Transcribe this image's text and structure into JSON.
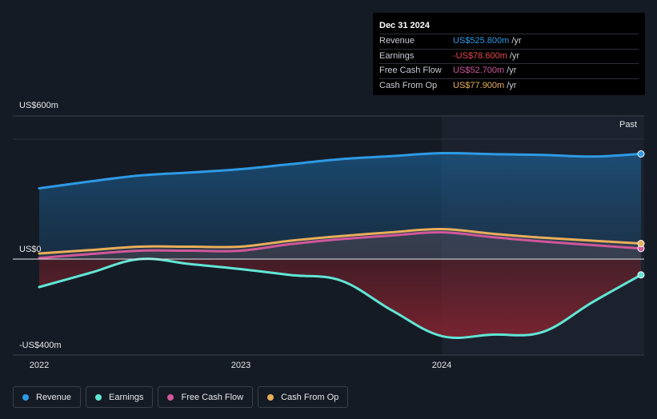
{
  "chart_data": {
    "type": "area",
    "yaxis_labels": {
      "top": "US$600m",
      "zero": "US$0",
      "bottom": "-US$400m"
    },
    "ylim": [
      -400,
      600
    ],
    "xlim": [
      2022.0,
      2024.99
    ],
    "x_ticks": [
      {
        "value": 2022,
        "label": "2022"
      },
      {
        "value": 2023,
        "label": "2023"
      },
      {
        "value": 2024,
        "label": "2024"
      }
    ],
    "highlight_from": 2024.0,
    "past_label": "Past",
    "series": [
      {
        "name": "Revenue",
        "color": "#2e9ae5",
        "x": [
          2022.0,
          2022.25,
          2022.5,
          2022.75,
          2023.0,
          2023.25,
          2023.5,
          2023.75,
          2024.0,
          2024.25,
          2024.5,
          2024.75,
          2024.99
        ],
        "values": [
          354,
          388,
          418,
          433,
          450,
          475,
          500,
          515,
          530,
          525,
          521,
          513,
          526
        ]
      },
      {
        "name": "Earnings",
        "color": "#61e6d5",
        "x": [
          2022.0,
          2022.25,
          2022.5,
          2022.75,
          2023.0,
          2023.25,
          2023.5,
          2023.75,
          2024.0,
          2024.25,
          2024.5,
          2024.75,
          2024.99
        ],
        "values": [
          -140,
          -70,
          0,
          -25,
          -50,
          -80,
          -108,
          -255,
          -385,
          -378,
          -365,
          -215,
          -79
        ]
      },
      {
        "name": "Free Cash Flow",
        "color": "#d0579a",
        "x": [
          2022.0,
          2022.25,
          2022.5,
          2022.75,
          2023.0,
          2023.25,
          2023.5,
          2023.75,
          2024.0,
          2024.25,
          2024.5,
          2024.75,
          2024.99
        ],
        "values": [
          5,
          25,
          42,
          42,
          42,
          75,
          100,
          118,
          134,
          110,
          88,
          70,
          53
        ]
      },
      {
        "name": "Cash From Op",
        "color": "#e9ae5a",
        "x": [
          2022.0,
          2022.25,
          2022.5,
          2022.75,
          2023.0,
          2023.25,
          2023.5,
          2023.75,
          2024.0,
          2024.25,
          2024.5,
          2024.75,
          2024.99
        ],
        "values": [
          28,
          45,
          62,
          62,
          62,
          92,
          115,
          134,
          150,
          127,
          107,
          92,
          78
        ]
      }
    ]
  },
  "tooltip": {
    "title": "Dec 31 2024",
    "rows": [
      {
        "name": "Revenue",
        "value": "US$525.800m",
        "unit": "/yr",
        "color": "#2e9ae5"
      },
      {
        "name": "Earnings",
        "value": "-US$78.600m",
        "unit": "/yr",
        "color": "#e8474a"
      },
      {
        "name": "Free Cash Flow",
        "value": "US$52.700m",
        "unit": "/yr",
        "color": "#d0579a"
      },
      {
        "name": "Cash From Op",
        "value": "US$77.900m",
        "unit": "/yr",
        "color": "#e9ae5a"
      }
    ]
  },
  "legend": [
    {
      "label": "Revenue",
      "color": "#2e9ae5"
    },
    {
      "label": "Earnings",
      "color": "#61e6d5"
    },
    {
      "label": "Free Cash Flow",
      "color": "#d0579a"
    },
    {
      "label": "Cash From Op",
      "color": "#e9ae5a"
    }
  ]
}
